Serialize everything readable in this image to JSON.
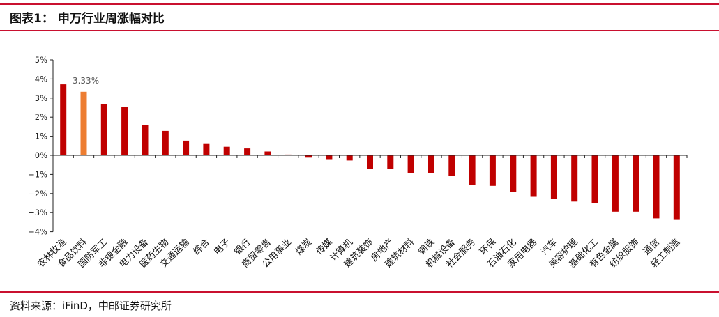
{
  "header": {
    "figure_label": "图表1：",
    "title": "申万行业周涨幅对比"
  },
  "footer": {
    "source": "资料来源：iFinD，中邮证券研究所"
  },
  "colors": {
    "bar": "#c00000",
    "highlight": "#ed7d31",
    "rule": "#c9102f",
    "axis": "#222222"
  },
  "chart_data": {
    "type": "bar",
    "title": "",
    "xlabel": "",
    "ylabel": "",
    "ylim": [
      -4,
      5
    ],
    "yticks": [
      5,
      4,
      3,
      2,
      1,
      0,
      -1,
      -2,
      -3,
      -4
    ],
    "ytick_labels": [
      "5%",
      "4%",
      "3%",
      "2%",
      "1%",
      "0%",
      "−1%",
      "−2%",
      "−3%",
      "−4%"
    ],
    "grid": false,
    "legend": "none",
    "categories": [
      "农林牧渔",
      "食品饮料",
      "国防军工",
      "非银金融",
      "电力设备",
      "医药生物",
      "交通运输",
      "综合",
      "电子",
      "银行",
      "商贸零售",
      "公用事业",
      "煤炭",
      "传媒",
      "计算机",
      "建筑装饰",
      "房地产",
      "建筑材料",
      "钢铁",
      "机械设备",
      "社会服务",
      "环保",
      "石油石化",
      "家用电器",
      "汽车",
      "美容护理",
      "基础化工",
      "有色金属",
      "纺织服饰",
      "通信",
      "轻工制造"
    ],
    "values": [
      3.72,
      3.33,
      2.7,
      2.55,
      1.57,
      1.28,
      0.77,
      0.63,
      0.45,
      0.36,
      0.2,
      0.04,
      -0.12,
      -0.2,
      -0.27,
      -0.7,
      -0.73,
      -0.92,
      -0.95,
      -1.09,
      -1.55,
      -1.6,
      -1.93,
      -2.17,
      -2.3,
      -2.42,
      -2.52,
      -2.95,
      -2.95,
      -3.3,
      -3.38
    ],
    "highlight_index": 1,
    "data_labels": [
      {
        "index": 1,
        "text": "3.33%"
      }
    ]
  }
}
